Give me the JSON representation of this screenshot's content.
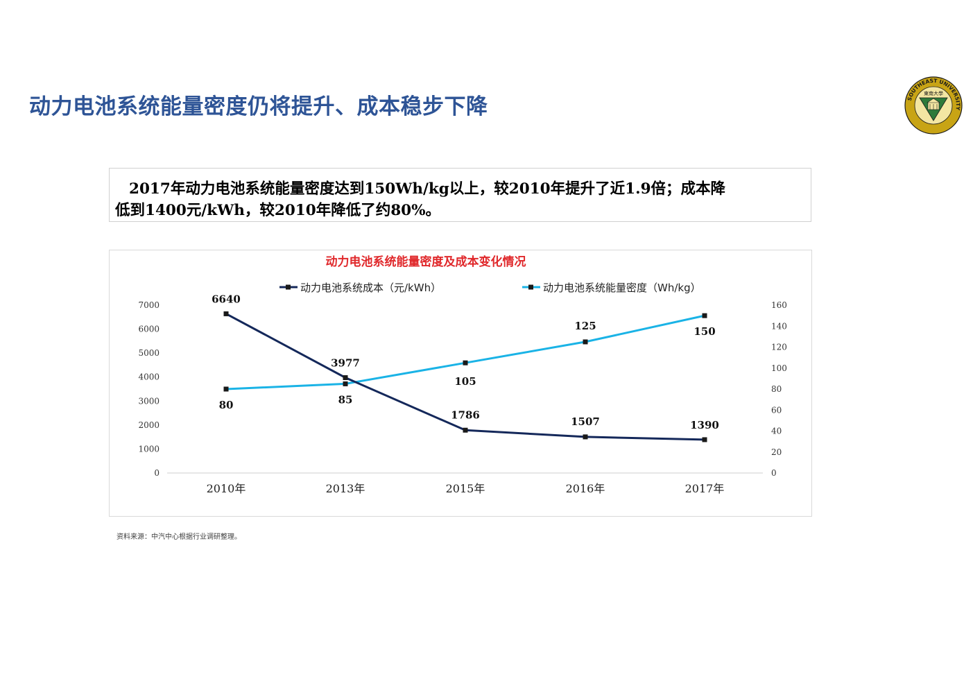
{
  "page": {
    "title": "动力电池系统能量密度仍将提升、成本稳步下降",
    "summary_line1": "2017年动力电池系统能量密度达到150Wh/kg以上，较2010年提升了近1.9倍；成本降",
    "summary_line2": "低到1400元/kWh，较2010年降低了约80%。",
    "source_note": "资料来源：中汽中心根据行业调研整理。"
  },
  "logo": {
    "name": "southeast-university-seal",
    "ring_text": "SOUTHEAST UNIVERSITY",
    "top_text": "東南大學",
    "colors": {
      "ring": "#c8a415",
      "shield_green": "#2d7a3a",
      "ink": "#1a1a1a"
    }
  },
  "colors": {
    "title": "#2e5496",
    "chart_title": "#e0282b",
    "cost_line": "#14285a",
    "density_line": "#1ab3e6"
  },
  "chart_data": {
    "type": "line",
    "title": "动力电池系统能量密度及成本变化情况",
    "categories": [
      "2010年",
      "2013年",
      "2015年",
      "2016年",
      "2017年"
    ],
    "legend_position": "top",
    "grid": false,
    "series": [
      {
        "name": "动力电池系统成本（元/kWh）",
        "axis": "left",
        "color": "#14285a",
        "values": [
          6640,
          3977,
          1786,
          1507,
          1390
        ],
        "labels": [
          "6640",
          "3977",
          "1786",
          "1507",
          "1390"
        ]
      },
      {
        "name": "动力电池系统能量密度（Wh/kg）",
        "axis": "right",
        "color": "#1ab3e6",
        "values": [
          80,
          85,
          105,
          125,
          150
        ],
        "labels": [
          "80",
          "85",
          "105",
          "125",
          "150"
        ]
      }
    ],
    "y_left": {
      "min": 0,
      "max": 7000,
      "ticks": [
        "0",
        "1000",
        "2000",
        "3000",
        "4000",
        "5000",
        "6000",
        "7000"
      ]
    },
    "y_right": {
      "min": 0,
      "max": 160,
      "ticks": [
        "0",
        "20",
        "40",
        "60",
        "80",
        "100",
        "120",
        "140",
        "160"
      ]
    }
  }
}
